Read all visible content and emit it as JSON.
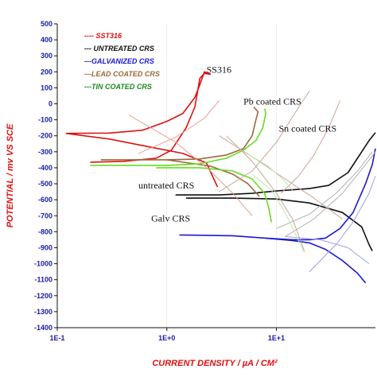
{
  "chart_data": {
    "type": "line",
    "xlabel": "CURRENT DENSITY  /  µA / CM²",
    "ylabel": "POTENTIAL  /  mv VS SCE",
    "xscale": "log",
    "xlim": [
      0.1,
      80
    ],
    "ylim": [
      -1400,
      500
    ],
    "x_ticks": [
      0.1,
      1,
      10
    ],
    "x_tick_labels": [
      "1E-1",
      "1E+0",
      "1E+1"
    ],
    "y_ticks": [
      500,
      400,
      300,
      200,
      100,
      0,
      -100,
      -200,
      -300,
      -400,
      -500,
      -600,
      -700,
      -800,
      -900,
      -1000,
      -1100,
      -1200,
      -1300,
      -1400
    ],
    "y_tick_labels": [
      "500",
      "400",
      "300",
      "200",
      "100",
      "0",
      "-100",
      "-200",
      "-300",
      "-400",
      "-500",
      "-600",
      "-700",
      "-800",
      "-900",
      "-1000",
      "-1100",
      "-1200",
      "-1300",
      "-1400"
    ],
    "legend_position": "top-left",
    "legend": [
      {
        "label": "---- SST316",
        "color": "#dd1111"
      },
      {
        "label": "--- UNTREATED CRS",
        "color": "#111111"
      },
      {
        "label": "---GALVANIZED CRS",
        "color": "#1a1ad0"
      },
      {
        "label": "---LEAD COATED CRS",
        "color": "#9a6a3a"
      },
      {
        "label": "---TIN COATED CRS",
        "color": "#1a8a1a"
      }
    ],
    "annotations": [
      {
        "text": "SS316",
        "x": 2.3,
        "y": 195
      },
      {
        "text": "Pb coated CRS",
        "x": 5.0,
        "y": -5
      },
      {
        "text": "Sn coated  CRS",
        "x": 10.5,
        "y": -175
      },
      {
        "text": "untreated CRS",
        "x": 0.55,
        "y": -530
      },
      {
        "text": "Galv CRS",
        "x": 0.72,
        "y": -735
      }
    ],
    "series": [
      {
        "color": "#dd1111",
        "points": [
          [
            0.12,
            -185
          ],
          [
            0.3,
            -183
          ],
          [
            0.6,
            -165
          ],
          [
            1.0,
            -110
          ],
          [
            1.4,
            -60
          ],
          [
            1.8,
            40
          ],
          [
            2.0,
            120
          ],
          [
            2.2,
            200
          ],
          [
            2.5,
            185
          ],
          [
            2.2,
            190
          ],
          [
            2.0,
            160
          ],
          [
            1.8,
            -20
          ],
          [
            1.5,
            -150
          ],
          [
            1.1,
            -290
          ],
          [
            0.8,
            -340
          ],
          [
            0.4,
            -360
          ],
          [
            0.2,
            -365
          ]
        ]
      },
      {
        "color": "#dd1111",
        "points": [
          [
            0.12,
            -185
          ],
          [
            0.3,
            -220
          ],
          [
            0.7,
            -270
          ],
          [
            1.4,
            -310
          ],
          [
            2.3,
            -370
          ],
          [
            2.6,
            -450
          ],
          [
            2.9,
            -520
          ]
        ]
      },
      {
        "color": "#111111",
        "points": [
          [
            1.2,
            -570
          ],
          [
            3.0,
            -570
          ],
          [
            6.0,
            -560
          ],
          [
            10,
            -545
          ],
          [
            20,
            -530
          ],
          [
            30,
            -510
          ],
          [
            45,
            -430
          ],
          [
            60,
            -300
          ],
          [
            70,
            -230
          ],
          [
            80,
            -180
          ]
        ]
      },
      {
        "color": "#111111",
        "points": [
          [
            1.5,
            -590
          ],
          [
            4.0,
            -590
          ],
          [
            10,
            -595
          ],
          [
            20,
            -620
          ],
          [
            40,
            -680
          ],
          [
            60,
            -770
          ],
          [
            70,
            -880
          ],
          [
            75,
            -920
          ]
        ]
      },
      {
        "color": "#1a1ad0",
        "points": [
          [
            1.3,
            -820
          ],
          [
            4.0,
            -825
          ],
          [
            8.0,
            -840
          ],
          [
            14,
            -850
          ],
          [
            20,
            -850
          ],
          [
            28,
            -840
          ],
          [
            38,
            -780
          ],
          [
            50,
            -680
          ],
          [
            65,
            -500
          ],
          [
            75,
            -380
          ],
          [
            80,
            -280
          ]
        ]
      },
      {
        "color": "#1a1ad0",
        "points": [
          [
            8.0,
            -840
          ],
          [
            14,
            -855
          ],
          [
            20,
            -870
          ],
          [
            28,
            -910
          ],
          [
            40,
            -980
          ],
          [
            55,
            -1060
          ],
          [
            65,
            -1120
          ]
        ]
      },
      {
        "color": "#9a6a3a",
        "points": [
          [
            0.25,
            -350
          ],
          [
            1.0,
            -350
          ],
          [
            2.0,
            -345
          ],
          [
            3.5,
            -320
          ],
          [
            5.0,
            -280
          ],
          [
            6.0,
            -200
          ],
          [
            6.5,
            -100
          ],
          [
            6.8,
            -50
          ],
          [
            6.2,
            -20
          ]
        ]
      },
      {
        "color": "#9a6a3a",
        "points": [
          [
            1.0,
            -350
          ],
          [
            2.5,
            -390
          ],
          [
            4.0,
            -440
          ],
          [
            5.5,
            -500
          ],
          [
            7.0,
            -580
          ]
        ]
      },
      {
        "color": "#66dd22",
        "points": [
          [
            0.2,
            -385
          ],
          [
            1.0,
            -385
          ],
          [
            2.0,
            -375
          ],
          [
            3.5,
            -340
          ],
          [
            5.0,
            -290
          ],
          [
            6.5,
            -230
          ],
          [
            7.5,
            -150
          ],
          [
            8.0,
            -60
          ],
          [
            7.8,
            -30
          ]
        ]
      },
      {
        "color": "#66dd22",
        "points": [
          [
            0.8,
            -400
          ],
          [
            2.0,
            -400
          ],
          [
            4.0,
            -420
          ],
          [
            6.0,
            -470
          ],
          [
            7.8,
            -560
          ],
          [
            8.5,
            -650
          ],
          [
            9.0,
            -740
          ]
        ]
      },
      {
        "color": "#e8a090",
        "points": [
          [
            0.45,
            -70
          ],
          [
            1.2,
            -240
          ],
          [
            2.5,
            -420
          ],
          [
            4.0,
            -560
          ],
          [
            6.0,
            -700
          ]
        ]
      },
      {
        "color": "#e8a090",
        "points": [
          [
            0.55,
            -310
          ],
          [
            1.2,
            -210
          ],
          [
            2.2,
            -90
          ],
          [
            3.0,
            20
          ]
        ]
      },
      {
        "color": "#c8a898",
        "points": [
          [
            3.0,
            -200
          ],
          [
            6.0,
            -330
          ],
          [
            12,
            -470
          ],
          [
            22,
            -590
          ],
          [
            40,
            -720
          ]
        ]
      },
      {
        "color": "#c8a898",
        "points": [
          [
            3.0,
            -550
          ],
          [
            6.0,
            -420
          ],
          [
            10,
            -240
          ],
          [
            15,
            -50
          ],
          [
            20,
            80
          ]
        ]
      },
      {
        "color": "#c8a898",
        "points": [
          [
            3.5,
            -200
          ],
          [
            6.0,
            -360
          ],
          [
            10,
            -560
          ],
          [
            14,
            -720
          ],
          [
            18,
            -920
          ]
        ]
      },
      {
        "color": "#c8a898",
        "points": [
          [
            11,
            -560
          ],
          [
            16,
            -450
          ],
          [
            22,
            -320
          ],
          [
            30,
            -150
          ],
          [
            38,
            20
          ]
        ]
      },
      {
        "color": "#b0b0b0",
        "points": [
          [
            10,
            -780
          ],
          [
            20,
            -690
          ],
          [
            35,
            -560
          ],
          [
            55,
            -420
          ],
          [
            75,
            -300
          ]
        ]
      },
      {
        "color": "#b0b0b0",
        "points": [
          [
            12,
            -830
          ],
          [
            22,
            -720
          ],
          [
            40,
            -560
          ],
          [
            65,
            -380
          ],
          [
            80,
            -300
          ]
        ]
      },
      {
        "color": "#a0a0e0",
        "points": [
          [
            20,
            -1050
          ],
          [
            35,
            -880
          ],
          [
            50,
            -740
          ],
          [
            70,
            -560
          ],
          [
            80,
            -450
          ]
        ]
      },
      {
        "color": "#a0a0e0",
        "points": [
          [
            12,
            -830
          ],
          [
            25,
            -850
          ],
          [
            45,
            -900
          ],
          [
            70,
            -1000
          ]
        ]
      },
      {
        "color": "#b8e8b0",
        "points": [
          [
            6.0,
            -440
          ],
          [
            9.0,
            -540
          ],
          [
            12,
            -680
          ],
          [
            16,
            -860
          ],
          [
            18,
            -930
          ]
        ]
      },
      {
        "color": "#b8e8b0",
        "points": [
          [
            5.0,
            -300
          ],
          [
            8.0,
            -380
          ],
          [
            11,
            -460
          ],
          [
            14,
            -540
          ]
        ]
      }
    ]
  }
}
